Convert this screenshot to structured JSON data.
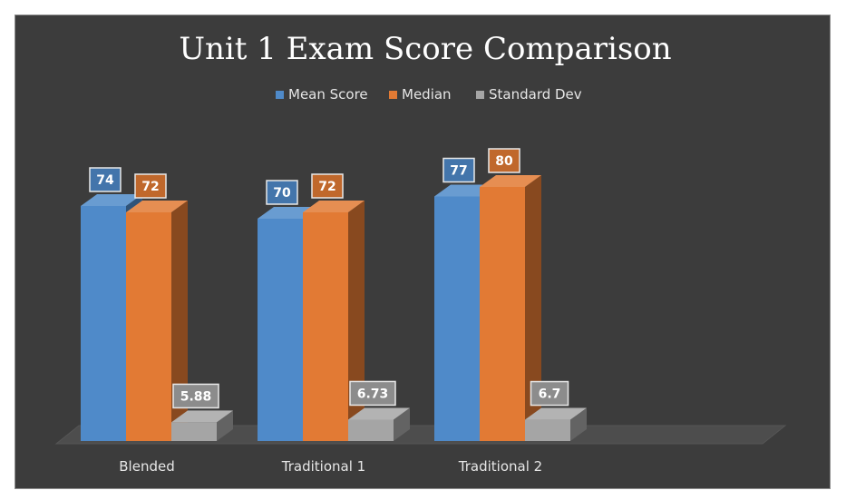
{
  "chart_data": {
    "type": "bar",
    "title": "Unit 1 Exam Score Comparison",
    "categories": [
      "Blended",
      "Traditional 1",
      "Traditional 2"
    ],
    "series": [
      {
        "name": "Mean Score",
        "color": "#4f8ac9",
        "values": [
          74,
          70,
          77
        ],
        "labels": [
          "74",
          "70",
          "77"
        ]
      },
      {
        "name": "Median",
        "color": "#e27a34",
        "values": [
          72,
          72,
          80
        ],
        "labels": [
          "72",
          "72",
          "80"
        ]
      },
      {
        "name": "Standard Dev",
        "color": "#a5a5a5",
        "values": [
          5.88,
          6.73,
          6.7
        ],
        "labels": [
          "5.88",
          "6.73",
          "6.7"
        ]
      }
    ],
    "ylim": [
      0,
      90
    ],
    "legend_position": "top",
    "grid": false,
    "style": "3d-clustered-column"
  }
}
